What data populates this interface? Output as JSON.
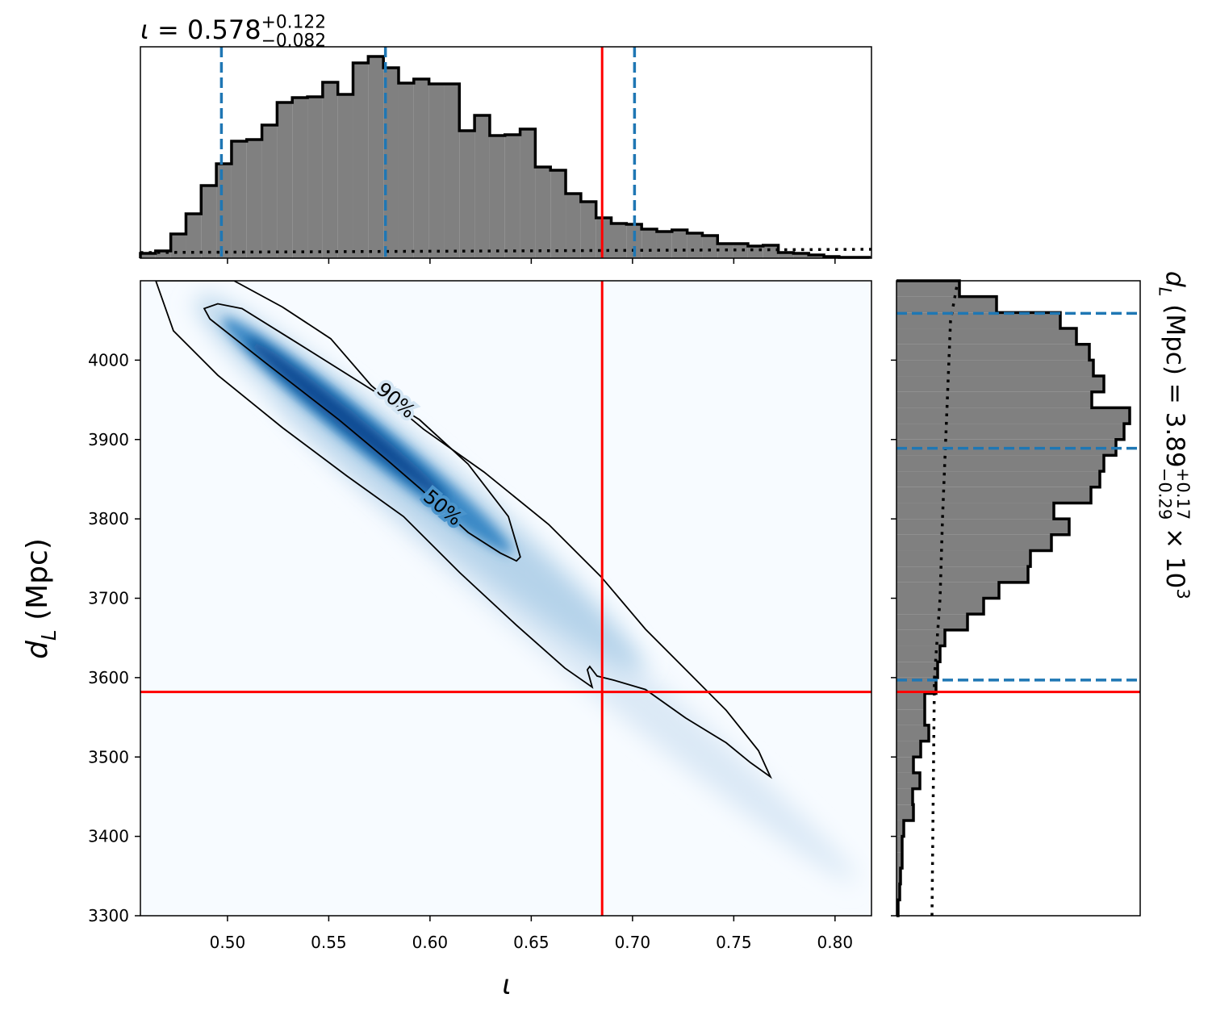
{
  "chart_data": [
    {
      "type": "histogram",
      "orientation": "vertical",
      "title": [
        {
          "text": "ι",
          "italic": true
        },
        {
          "text": " = 0.578"
        },
        {
          "text": "+0.122",
          "shift": "sup"
        },
        {
          "text": "−0.082",
          "shift": "sub",
          "stack": true
        }
      ],
      "bins": [
        0.457,
        0.4645,
        0.472,
        0.4795,
        0.487,
        0.4945,
        0.502,
        0.5095,
        0.517,
        0.5245,
        0.532,
        0.5395,
        0.547,
        0.5545,
        0.562,
        0.5695,
        0.577,
        0.5845,
        0.592,
        0.5995,
        0.607,
        0.6145,
        0.622,
        0.6295,
        0.637,
        0.6445,
        0.652,
        0.6595,
        0.667,
        0.6745,
        0.682,
        0.6895,
        0.697,
        0.7045,
        0.712,
        0.7195,
        0.727,
        0.7345,
        0.742,
        0.7495,
        0.757,
        0.7645,
        0.772,
        0.7795,
        0.787,
        0.7945,
        0.802,
        0.8095,
        0.817
      ],
      "values": [
        6,
        9,
        30,
        55,
        90,
        117,
        145,
        147,
        165,
        193,
        199,
        200,
        218,
        203,
        242,
        250,
        236,
        217,
        222,
        216,
        216,
        158,
        177,
        152,
        153,
        160,
        113,
        109,
        80,
        70,
        50,
        43,
        42,
        36,
        33,
        35,
        31,
        28,
        18,
        18,
        15,
        16,
        7,
        6,
        4,
        2,
        1,
        1
      ],
      "color": "#808080",
      "edgecolor": "#000000",
      "ylim": [
        0,
        262
      ],
      "quantiles": [
        0.497,
        0.578,
        0.701
      ],
      "quantile_color": "#1f77b4",
      "prior": {
        "x": [
          0.457,
          0.818
        ],
        "values": [
          7,
          11
        ]
      }
    },
    {
      "type": "density",
      "xlabel": [
        {
          "text": "ι",
          "italic": true
        }
      ],
      "ylabel": [
        {
          "text": "d",
          "italic": true
        },
        {
          "text": "L",
          "shift": "sub",
          "italic": true
        },
        {
          "text": " (Mpc)"
        }
      ],
      "xlim": [
        0.457,
        0.818
      ],
      "ylim": [
        3300,
        4100
      ],
      "xticks": [
        {
          "value": 0.5,
          "label": "0.50"
        },
        {
          "value": 0.55,
          "label": "0.55"
        },
        {
          "value": 0.6,
          "label": "0.60"
        },
        {
          "value": 0.65,
          "label": "0.65"
        },
        {
          "value": 0.7,
          "label": "0.70"
        },
        {
          "value": 0.75,
          "label": "0.75"
        },
        {
          "value": 0.8,
          "label": "0.80"
        }
      ],
      "yticks": [
        3300,
        3400,
        3500,
        3600,
        3700,
        3800,
        3900,
        4000
      ],
      "truth": {
        "x": 0.685,
        "y": 3582
      },
      "truth_color": "#ff0000",
      "contours": [
        {
          "label": "90%",
          "x": [
            0.4646,
            0.5032,
            0.5271,
            0.551,
            0.571,
            0.5968,
            0.6267,
            0.6586,
            0.6845,
            0.7064,
            0.7263,
            0.7462,
            0.7622,
            0.7681,
            0.7582,
            0.7462,
            0.7263,
            0.7064,
            0.6905,
            0.6825,
            0.6789,
            0.6777,
            0.6801,
            0.6666,
            0.6427,
            0.6148,
            0.5869,
            0.559,
            0.5271,
            0.4952,
            0.4733
          ],
          "y": [
            4100,
            4100,
            4067,
            4027,
            3968,
            3913,
            3859,
            3793,
            3727,
            3661,
            3610,
            3559,
            3508,
            3475,
            3493,
            3518,
            3549,
            3585,
            3597,
            3602,
            3614,
            3610,
            3588,
            3612,
            3666,
            3732,
            3803,
            3854,
            3915,
            3981,
            4037
          ]
        },
        {
          "label": "50%",
          "x": [
            0.4885,
            0.4952,
            0.5072,
            0.5311,
            0.563,
            0.5948,
            0.6188,
            0.6387,
            0.6446,
            0.6427,
            0.6347,
            0.6188,
            0.5948,
            0.5789,
            0.555,
            0.5191,
            0.4913
          ],
          "y": [
            4065,
            4071,
            4065,
            4027,
            3976,
            3925,
            3869,
            3803,
            3752,
            3747,
            3757,
            3783,
            3839,
            3874,
            3925,
            3996,
            4052
          ]
        }
      ]
    },
    {
      "type": "histogram",
      "orientation": "horizontal",
      "label": [
        {
          "text": "d",
          "italic": true
        },
        {
          "text": "L",
          "shift": "sub",
          "italic": true
        },
        {
          "text": " (Mpc) = 3.89"
        },
        {
          "text": "+0.17",
          "shift": "sup"
        },
        {
          "text": "−0.29",
          "shift": "sub",
          "stack": true
        },
        {
          "text": " × 10"
        },
        {
          "text": "3",
          "shift": "sup"
        }
      ],
      "bins": [
        3300,
        3320,
        3340,
        3360,
        3380,
        3400,
        3420,
        3440,
        3460,
        3480,
        3500,
        3520,
        3540,
        3560,
        3580,
        3600,
        3620,
        3640,
        3660,
        3680,
        3700,
        3720,
        3740,
        3760,
        3780,
        3800,
        3820,
        3840,
        3860,
        3880,
        3900,
        3920,
        3940,
        3960,
        3980,
        4000,
        4020,
        4040,
        4060,
        4080,
        4100
      ],
      "values": [
        2,
        4,
        5,
        7,
        7,
        9,
        21,
        20,
        29,
        21,
        30,
        40,
        35,
        35,
        49,
        51,
        54,
        60,
        88,
        108,
        127,
        163,
        166,
        192,
        214,
        195,
        241,
        252,
        257,
        272,
        282,
        289,
        242,
        257,
        244,
        239,
        223,
        203,
        124,
        78
      ],
      "color": "#808080",
      "edgecolor": "#000000",
      "xlim": [
        0,
        302
      ],
      "quantiles": [
        4059,
        3889,
        3597
      ],
      "quantile_color": "#1f77b4",
      "prior": {
        "y": [
          3300,
          3600,
          3700,
          3800,
          3900,
          4050,
          4100
        ],
        "values": [
          44,
          47,
          54,
          57,
          61,
          67,
          76
        ]
      }
    }
  ]
}
